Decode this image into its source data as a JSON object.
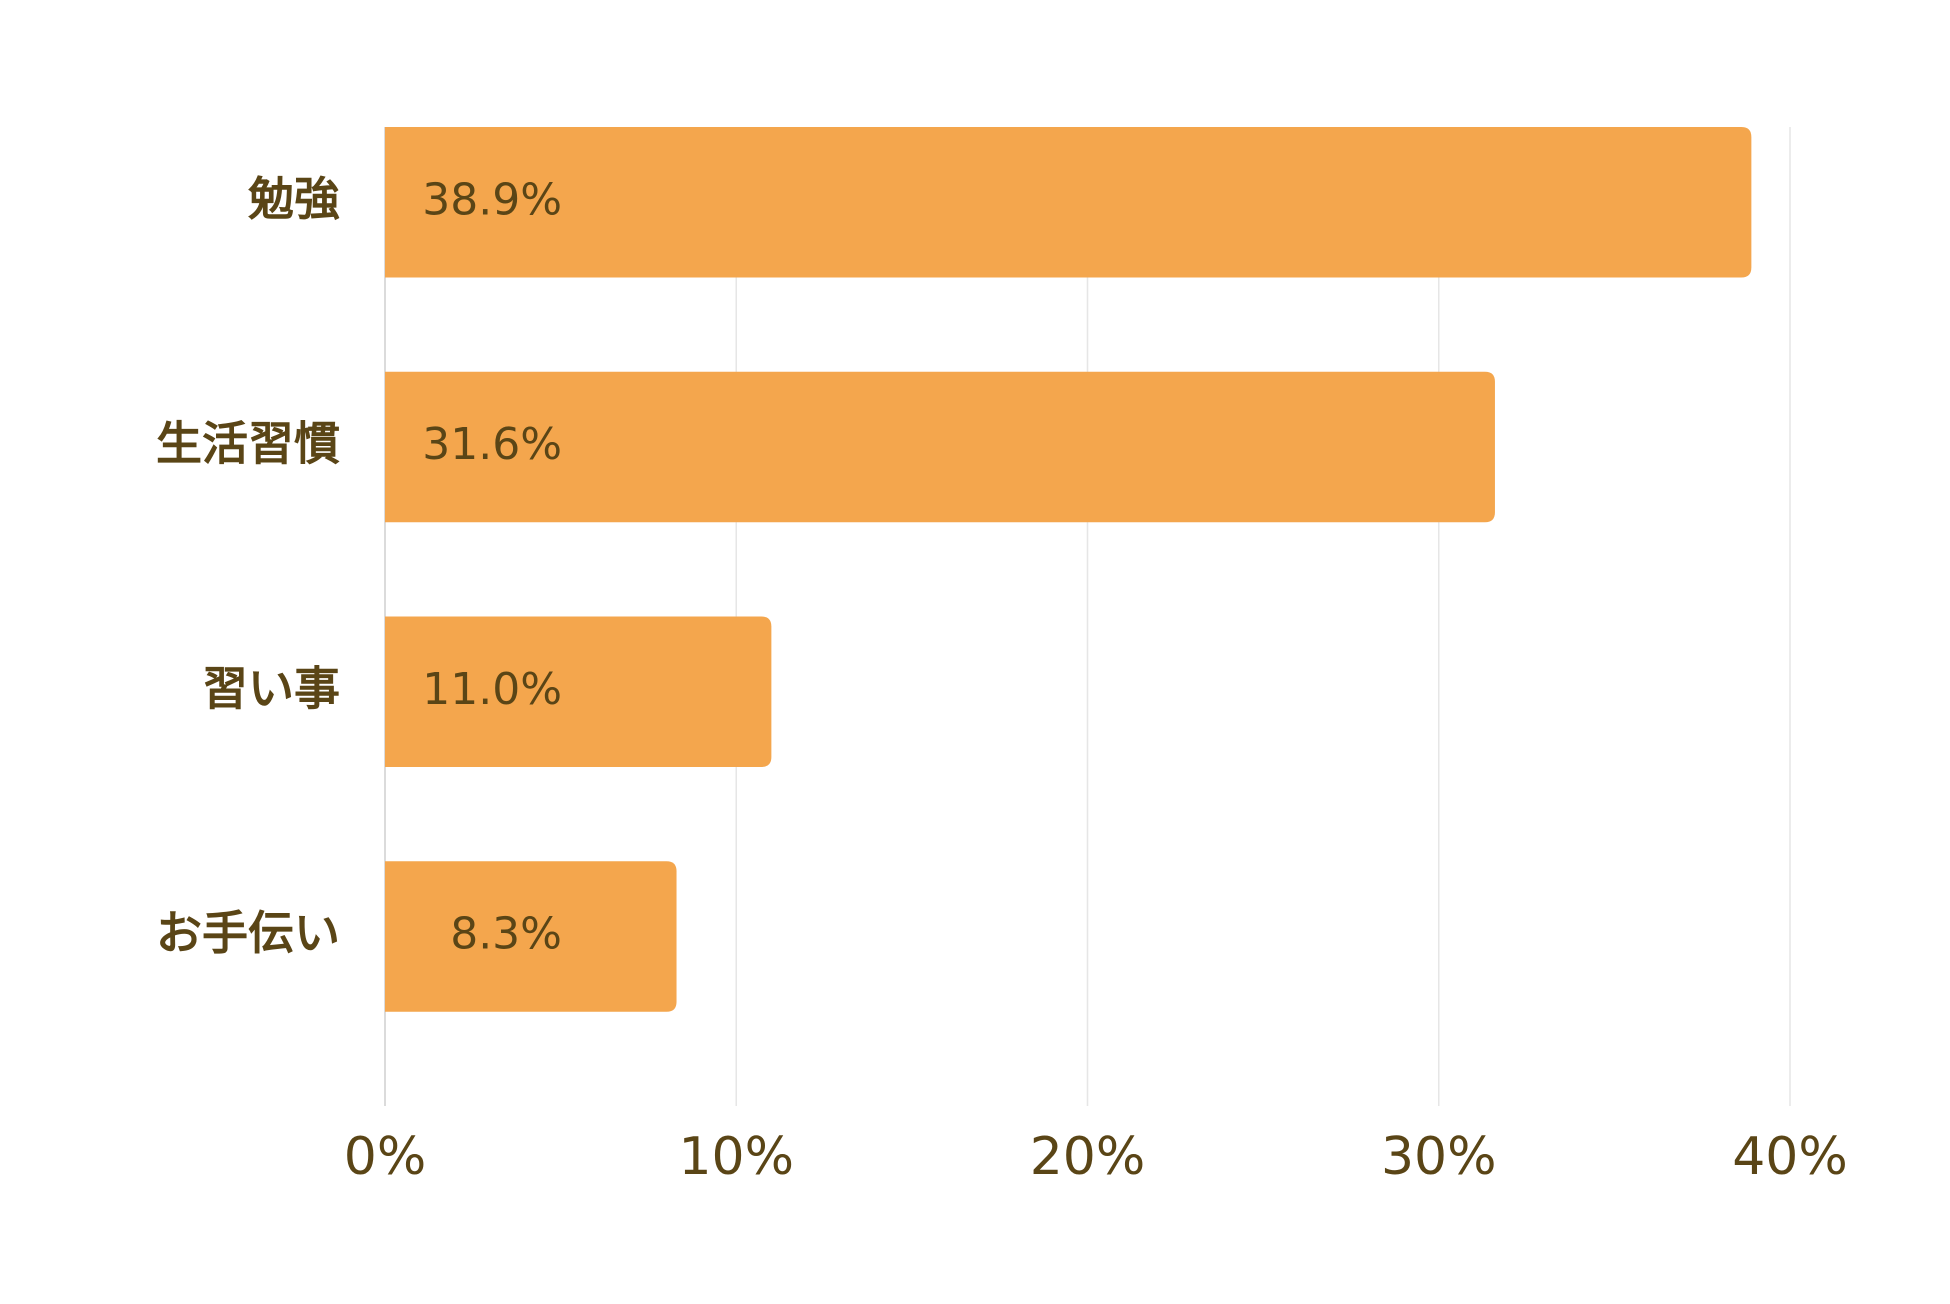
{
  "chart_data": {
    "type": "barh",
    "categories": [
      "勉強",
      "生活習慣",
      "習い事",
      "お手伝い"
    ],
    "values": [
      38.9,
      31.6,
      11.0,
      8.3
    ],
    "value_labels": [
      "38.9%",
      "31.6%",
      "11.0%",
      "8.3%"
    ],
    "color": "#f4a64d",
    "xlim": [
      0,
      40
    ],
    "xticks": [
      {
        "value": 0,
        "label": "0%"
      },
      {
        "value": 10,
        "label": "10%"
      },
      {
        "value": 20,
        "label": "20%"
      },
      {
        "value": 30,
        "label": "30%"
      },
      {
        "value": 40,
        "label": "40%"
      }
    ],
    "grid": true
  }
}
